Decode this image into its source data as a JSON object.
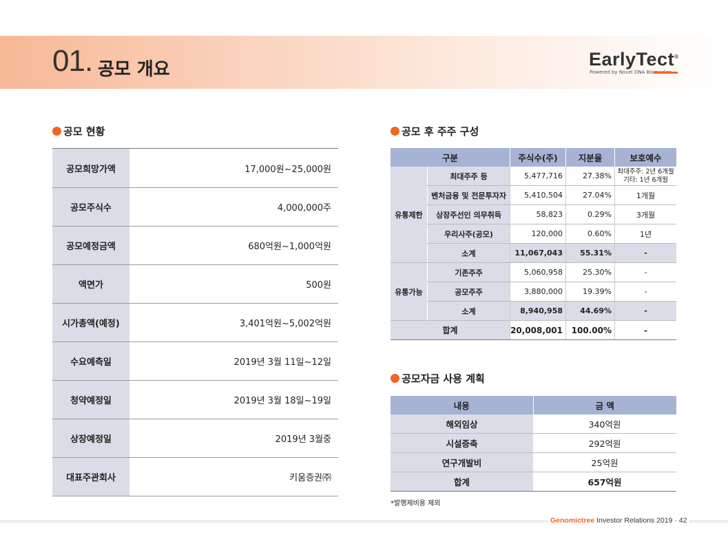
{
  "header": {
    "section_number": "01.",
    "section_title": "공모 개요",
    "logo_text": "EarlyTect",
    "logo_reg": "®",
    "logo_subtitle": "Powered by Novel DNA Biomarker"
  },
  "offering": {
    "title": "공모 현황",
    "rows": [
      {
        "label": "공모희망가액",
        "value": "17,000원~25,000원"
      },
      {
        "label": "공모주식수",
        "value": "4,000,000주"
      },
      {
        "label": "공모예정금액",
        "value": "680억원~1,000억원"
      },
      {
        "label": "액면가",
        "value": "500원"
      },
      {
        "label": "시가총액(예정)",
        "value": "3,401억원~5,002억원"
      },
      {
        "label": "수요예측일",
        "value": "2019년 3월 11일~12일"
      },
      {
        "label": "청약예정일",
        "value": "2019년 3월 18일~19일"
      },
      {
        "label": "상장예정일",
        "value": "2019년 3월중"
      },
      {
        "label": "대표주관회사",
        "value": "키움증권㈜"
      }
    ]
  },
  "shareholders": {
    "title": "공모 후 주주 구성",
    "headers": [
      "구분",
      "주식수(주)",
      "지분율",
      "보호예수"
    ],
    "restricted_label": "유통제한",
    "restricted_rows": [
      {
        "category": "최대주주 등",
        "shares": "5,477,716",
        "ratio": "27.38%",
        "lockup": "최대주주: 2년 6개월",
        "lockup2": "기타: 1년 6개월"
      },
      {
        "category": "벤처금융 및 전문투자자",
        "shares": "5,410,504",
        "ratio": "27.04%",
        "lockup": "1개월"
      },
      {
        "category": "상장주선인 의무취득",
        "shares": "58,823",
        "ratio": "0.29%",
        "lockup": "3개월"
      },
      {
        "category": "우리사주(공모)",
        "shares": "120,000",
        "ratio": "0.60%",
        "lockup": "1년"
      }
    ],
    "restricted_subtotal": {
      "category": "소계",
      "shares": "11,067,043",
      "ratio": "55.31%",
      "lockup": "-"
    },
    "tradable_label": "유통가능",
    "tradable_rows": [
      {
        "category": "기존주주",
        "shares": "5,060,958",
        "ratio": "25.30%",
        "lockup": "-"
      },
      {
        "category": "공모주주",
        "shares": "3,880,000",
        "ratio": "19.39%",
        "lockup": "-"
      }
    ],
    "tradable_subtotal": {
      "category": "소계",
      "shares": "8,940,958",
      "ratio": "44.69%",
      "lockup": "-"
    },
    "total": {
      "category": "합계",
      "shares": "20,008,001",
      "ratio": "100.00%",
      "lockup": "-"
    }
  },
  "funds": {
    "title": "공모자금 사용 계획",
    "headers": [
      "내용",
      "금 액"
    ],
    "rows": [
      {
        "item": "해외임상",
        "amount": "340억원"
      },
      {
        "item": "시설증축",
        "amount": "292억원"
      },
      {
        "item": "연구개발비",
        "amount": "25억원"
      }
    ],
    "total": {
      "item": "합계",
      "amount": "657억원"
    },
    "note": "*발행제비용 제외"
  },
  "footer": {
    "brand": "Genomictree",
    "text": "Investor Relations 2019",
    "separator": "·",
    "page": "42"
  },
  "colors": {
    "accent": "#f26522",
    "header_fill": "#a6b3d4",
    "label_fill": "#dadde7"
  }
}
